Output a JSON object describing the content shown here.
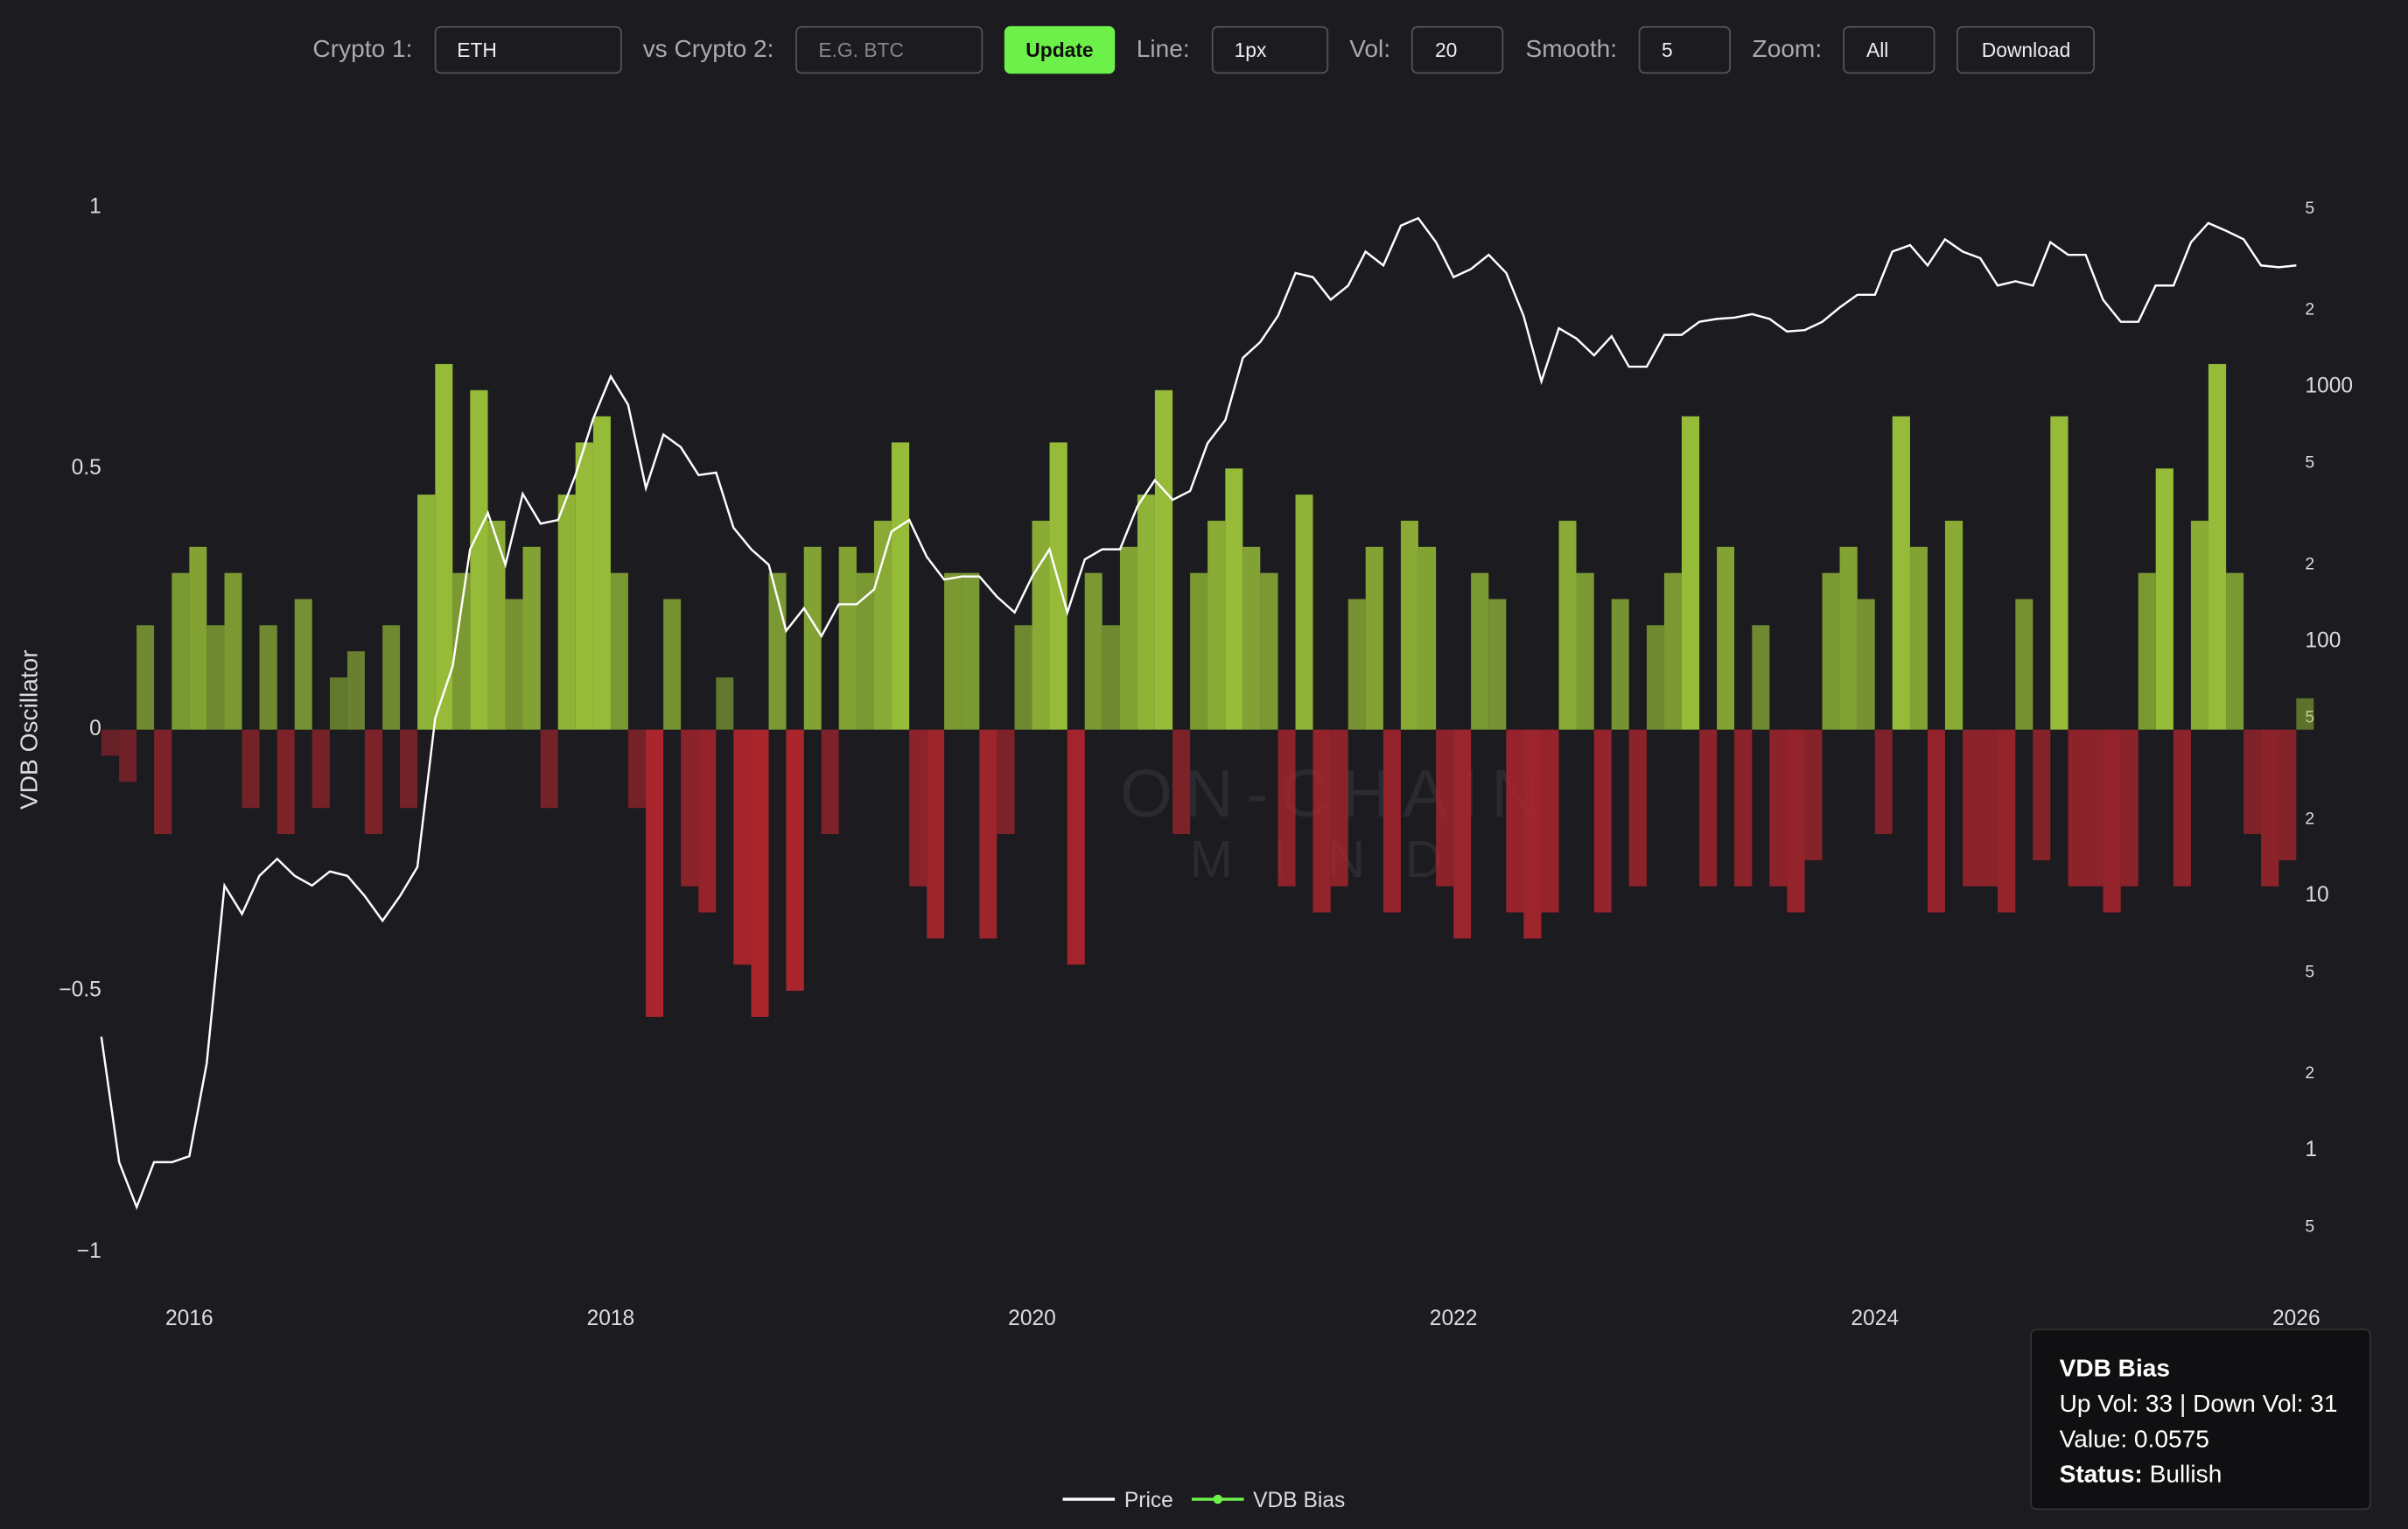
{
  "toolbar": {
    "crypto1_label": "Crypto 1:",
    "crypto1_value": "ETH",
    "crypto2_label": "vs Crypto 2:",
    "crypto2_placeholder": "E.G. BTC",
    "update": "Update",
    "line_label": "Line:",
    "line_value": "1px",
    "vol_label": "Vol:",
    "vol_value": "20",
    "smooth_label": "Smooth:",
    "smooth_value": "5",
    "zoom_label": "Zoom:",
    "zoom_value": "All",
    "download": "Download"
  },
  "tooltip": {
    "title": "VDB Bias",
    "lines": [
      "Up Vol: 33 | Down Vol: 31",
      "Value: 0.0575"
    ],
    "status_label": "Status:",
    "status": "Bullish"
  },
  "chart_data": {
    "type": "combo",
    "y_label": "VDB Oscillator",
    "watermark": [
      "ON-CHAIN",
      "MIND"
    ],
    "x": [
      2015.583,
      2015.667,
      2015.75,
      2015.833,
      2015.917,
      2016.0,
      2016.083,
      2016.167,
      2016.25,
      2016.333,
      2016.417,
      2016.5,
      2016.583,
      2016.667,
      2016.75,
      2016.833,
      2016.917,
      2017.0,
      2017.083,
      2017.167,
      2017.25,
      2017.333,
      2017.417,
      2017.5,
      2017.583,
      2017.667,
      2017.75,
      2017.833,
      2017.917,
      2018.0,
      2018.083,
      2018.167,
      2018.25,
      2018.333,
      2018.417,
      2018.5,
      2018.583,
      2018.667,
      2018.75,
      2018.833,
      2018.917,
      2019.0,
      2019.083,
      2019.167,
      2019.25,
      2019.333,
      2019.417,
      2019.5,
      2019.583,
      2019.667,
      2019.75,
      2019.833,
      2019.917,
      2020.0,
      2020.083,
      2020.167,
      2020.25,
      2020.333,
      2020.417,
      2020.5,
      2020.583,
      2020.667,
      2020.75,
      2020.833,
      2020.917,
      2021.0,
      2021.083,
      2021.167,
      2021.25,
      2021.333,
      2021.417,
      2021.5,
      2021.583,
      2021.667,
      2021.75,
      2021.833,
      2021.917,
      2022.0,
      2022.083,
      2022.167,
      2022.25,
      2022.333,
      2022.417,
      2022.5,
      2022.583,
      2022.667,
      2022.75,
      2022.833,
      2022.917,
      2023.0,
      2023.083,
      2023.167,
      2023.25,
      2023.333,
      2023.417,
      2023.5,
      2023.583,
      2023.667,
      2023.75,
      2023.833,
      2023.917,
      2024.0,
      2024.083,
      2024.167,
      2024.25,
      2024.333,
      2024.417,
      2024.5,
      2024.583,
      2024.667,
      2024.75,
      2024.833,
      2024.917,
      2025.0,
      2025.083,
      2025.167,
      2025.25,
      2025.333,
      2025.417,
      2025.5,
      2025.583,
      2025.667,
      2025.75,
      2025.833,
      2025.917,
      2026.0
    ],
    "xlim": [
      2015.59,
      2026.02
    ],
    "xticks": [
      2016,
      2018,
      2020,
      2022,
      2024,
      2026
    ],
    "ylim": [
      -1,
      1
    ],
    "yticks": [
      1,
      0.5,
      0,
      {
        "value": -0.5,
        "label": "−0.5"
      },
      {
        "value": -1,
        "label": "−1"
      }
    ],
    "y2lim": [
      0.4,
      5070
    ],
    "y2scale": "log",
    "y2ticks": [
      {
        "value": 5000,
        "label": "5"
      },
      {
        "value": 2000,
        "label": "2"
      },
      1000,
      {
        "value": 500,
        "label": "5"
      },
      {
        "value": 200,
        "label": "2"
      },
      100,
      {
        "value": 50,
        "label": "5"
      },
      {
        "value": 20,
        "label": "2"
      },
      10,
      {
        "value": 5,
        "label": "5"
      },
      {
        "value": 2,
        "label": "2"
      },
      1,
      {
        "value": 0.5,
        "label": "5"
      }
    ],
    "series": [
      {
        "name": "Price",
        "type": "line",
        "axis": "y2",
        "color": "#ffffff",
        "values": [
          2.8,
          0.9,
          0.6,
          0.9,
          0.9,
          0.95,
          2.2,
          11,
          8.5,
          12,
          14,
          12,
          11,
          12.5,
          12,
          10,
          8,
          10,
          13,
          50,
          80,
          230,
          320,
          200,
          380,
          290,
          300,
          450,
          750,
          1100,
          850,
          400,
          650,
          580,
          450,
          460,
          280,
          230,
          200,
          110,
          135,
          105,
          140,
          140,
          160,
          270,
          300,
          215,
          175,
          180,
          180,
          150,
          130,
          180,
          230,
          130,
          210,
          230,
          230,
          340,
          430,
          360,
          390,
          600,
          740,
          1300,
          1500,
          1900,
          2800,
          2700,
          2200,
          2500,
          3400,
          3000,
          4300,
          4600,
          3700,
          2700,
          2900,
          3300,
          2800,
          1900,
          1050,
          1700,
          1550,
          1330,
          1580,
          1200,
          1200,
          1600,
          1600,
          1800,
          1850,
          1870,
          1930,
          1850,
          1650,
          1670,
          1800,
          2050,
          2300,
          2300,
          3400,
          3600,
          3000,
          3800,
          3400,
          3200,
          2500,
          2600,
          2500,
          3700,
          3300,
          3300,
          2200,
          1800,
          1800,
          2500,
          2500,
          3700,
          4400,
          4100,
          3800,
          3000,
          2950,
          3000
        ]
      },
      {
        "name": "VDB Bias",
        "type": "bar",
        "color": "#6ef04a",
        "positive_color": "#9cc43a",
        "negative_color": "#b3262e",
        "values": [
          -0.05,
          -0.1,
          0.2,
          -0.2,
          0.3,
          0.35,
          0.2,
          0.3,
          -0.15,
          0.2,
          -0.2,
          0.25,
          -0.15,
          0.1,
          0.15,
          -0.2,
          0.2,
          -0.15,
          0.45,
          0.7,
          0.3,
          0.65,
          0.4,
          0.25,
          0.35,
          -0.15,
          0.45,
          0.55,
          0.6,
          0.3,
          -0.15,
          -0.55,
          0.25,
          -0.3,
          -0.35,
          0.1,
          -0.45,
          -0.55,
          0.3,
          -0.5,
          0.35,
          -0.2,
          0.35,
          0.3,
          0.4,
          0.55,
          -0.3,
          -0.4,
          0.3,
          0.3,
          -0.4,
          -0.2,
          0.2,
          0.4,
          0.55,
          -0.45,
          0.3,
          0.2,
          0.35,
          0.45,
          0.65,
          -0.2,
          0.3,
          0.4,
          0.5,
          0.35,
          0.3,
          -0.3,
          0.45,
          -0.35,
          -0.3,
          0.25,
          0.35,
          -0.35,
          0.4,
          0.35,
          -0.3,
          -0.4,
          0.3,
          0.25,
          -0.35,
          -0.4,
          -0.35,
          0.4,
          0.3,
          -0.35,
          0.25,
          -0.3,
          0.2,
          0.3,
          0.6,
          -0.3,
          0.35,
          -0.3,
          0.2,
          -0.3,
          -0.35,
          -0.25,
          0.3,
          0.35,
          0.25,
          -0.2,
          0.6,
          0.35,
          -0.35,
          0.4,
          -0.3,
          -0.3,
          -0.35,
          0.25,
          -0.25,
          0.6,
          -0.3,
          -0.3,
          -0.35,
          -0.3,
          0.3,
          0.5,
          -0.3,
          0.4,
          0.7,
          0.3,
          -0.2,
          -0.3,
          -0.25,
          0.06
        ]
      }
    ]
  }
}
